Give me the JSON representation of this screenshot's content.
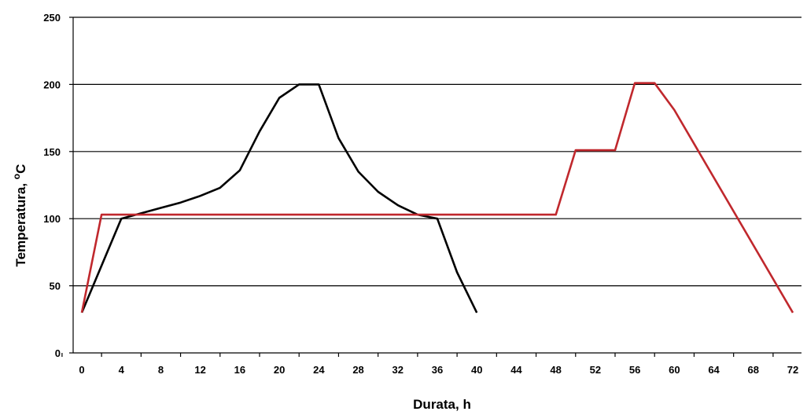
{
  "chart_data": {
    "type": "line",
    "title": "",
    "xlabel": "Durata, h",
    "ylabel": "Temperatura, oC",
    "ylabel_main": "Temperatura, ",
    "ylabel_sup": "o",
    "ylabel_unit": "C",
    "xlim": [
      0,
      72
    ],
    "ylim": [
      0,
      250
    ],
    "x_ticks": [
      0,
      4,
      8,
      12,
      16,
      20,
      24,
      28,
      32,
      36,
      40,
      44,
      48,
      52,
      56,
      60,
      64,
      68,
      72
    ],
    "y_ticks": [
      0,
      50,
      100,
      150,
      200,
      250
    ],
    "grid": "horizontal",
    "legend": "none",
    "series": [
      {
        "color": "#000000",
        "points": [
          [
            0,
            30
          ],
          [
            4,
            100
          ],
          [
            6,
            104
          ],
          [
            8,
            108
          ],
          [
            10,
            112
          ],
          [
            12,
            117
          ],
          [
            14,
            123
          ],
          [
            16,
            136
          ],
          [
            18,
            165
          ],
          [
            20,
            190
          ],
          [
            22,
            200
          ],
          [
            24,
            200
          ],
          [
            26,
            160
          ],
          [
            28,
            135
          ],
          [
            30,
            120
          ],
          [
            32,
            110
          ],
          [
            34,
            103
          ],
          [
            36,
            100
          ],
          [
            38,
            60
          ],
          [
            40,
            30
          ]
        ]
      },
      {
        "color": "#c0282d",
        "points": [
          [
            0,
            30
          ],
          [
            2,
            103
          ],
          [
            48,
            103
          ],
          [
            50,
            151
          ],
          [
            54,
            151
          ],
          [
            56,
            201
          ],
          [
            58,
            201
          ],
          [
            60,
            181
          ],
          [
            72,
            30
          ]
        ]
      }
    ]
  }
}
